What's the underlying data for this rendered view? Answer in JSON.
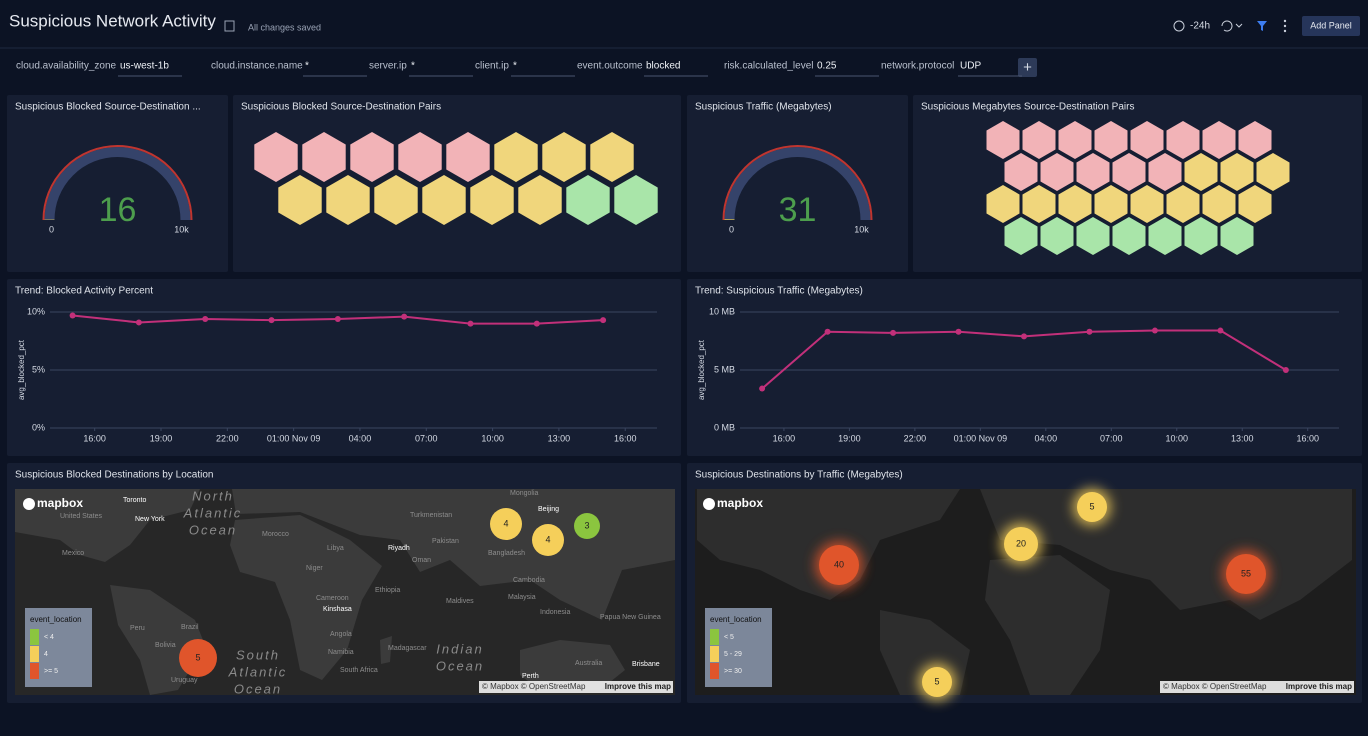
{
  "header": {
    "title": "Suspicious Network Activity",
    "status": "All changes saved",
    "time_range": "-24h",
    "add_panel": "Add Panel"
  },
  "filters": [
    {
      "label": "cloud.availability_zone",
      "value": "us-west-1b"
    },
    {
      "label": "cloud.instance.name",
      "value": "*"
    },
    {
      "label": "server.ip",
      "value": "*"
    },
    {
      "label": "client.ip",
      "value": "*"
    },
    {
      "label": "event.outcome",
      "value": "blocked"
    },
    {
      "label": "risk.calculated_level",
      "value": "0.25"
    },
    {
      "label": "network.protocol",
      "value": "UDP"
    }
  ],
  "chart_data": [
    {
      "type": "gauge",
      "title": "Suspicious Blocked Source-Destination ...",
      "value": 16,
      "min": 0,
      "max": {
        "value": 10000,
        "label": "10k"
      },
      "color": "#4d9e4d"
    },
    {
      "type": "honeycomb",
      "title": "Suspicious Blocked Source-Destination Pairs",
      "cells": [
        "#f2b3b7",
        "#f2b3b7",
        "#f2b3b7",
        "#f2b3b7",
        "#f2b3b7",
        "#f0d67c",
        "#f0d67c",
        "#f0d67c",
        "#f0d67c",
        "#f0d67c",
        "#f0d67c",
        "#f0d67c",
        "#f0d67c",
        "#f0d67c",
        "#a9e5a9",
        "#a9e5a9"
      ]
    },
    {
      "type": "gauge",
      "title": "Suspicious Traffic (Megabytes)",
      "value": 31,
      "min": 0,
      "max": {
        "value": 10000,
        "label": "10k"
      },
      "color": "#4d9e4d"
    },
    {
      "type": "honeycomb",
      "title": "Suspicious Megabytes Source-Destination Pairs",
      "cells": [
        "#f2b3b7",
        "#f2b3b7",
        "#f2b3b7",
        "#f2b3b7",
        "#f2b3b7",
        "#f2b3b7",
        "#f2b3b7",
        "#f2b3b7",
        "#f2b3b7",
        "#f2b3b7",
        "#f2b3b7",
        "#f2b3b7",
        "#f2b3b7",
        "#f0d67c",
        "#f0d67c",
        "#f0d67c",
        "#f0d67c",
        "#f0d67c",
        "#f0d67c",
        "#f0d67c",
        "#f0d67c",
        "#f0d67c",
        "#f0d67c",
        "#f0d67c",
        "#a9e5a9",
        "#a9e5a9",
        "#a9e5a9",
        "#a9e5a9",
        "#a9e5a9",
        "#a9e5a9",
        "#a9e5a9"
      ]
    },
    {
      "type": "line",
      "title": "Trend: Blocked Activity Percent",
      "y_label": "avg_blocked_pct",
      "color": "#c2307a",
      "x": [
        15,
        18,
        21,
        24,
        27,
        30,
        33,
        36,
        39
      ],
      "values": [
        9.7,
        9.1,
        9.4,
        9.3,
        9.4,
        9.6,
        9.0,
        9.0,
        9.3
      ],
      "xlim": [
        13.3,
        41.8
      ],
      "xticks": [
        {
          "value": 16,
          "label": "16:00"
        },
        {
          "value": 19,
          "label": "19:00"
        },
        {
          "value": 22,
          "label": "22:00"
        },
        {
          "value": 25,
          "label": "01:00 Nov 09"
        },
        {
          "value": 28,
          "label": "04:00"
        },
        {
          "value": 31,
          "label": "07:00"
        },
        {
          "value": 34,
          "label": "10:00"
        },
        {
          "value": 37,
          "label": "13:00"
        },
        {
          "value": 40,
          "label": "16:00"
        }
      ],
      "ylim": [
        0,
        10
      ],
      "yticks": [
        {
          "value": 0,
          "label": "0%"
        },
        {
          "value": 5,
          "label": "5%"
        },
        {
          "value": 10,
          "label": "10%"
        }
      ],
      "grid": true
    },
    {
      "type": "line",
      "title": "Trend: Suspicious Traffic (Megabytes)",
      "y_label": "avg_blocked_pct",
      "color": "#c2307a",
      "x": [
        15,
        18,
        21,
        24,
        27,
        30,
        33,
        36,
        39
      ],
      "values": [
        3.4,
        8.3,
        8.2,
        8.3,
        7.9,
        8.3,
        8.4,
        8.4,
        5.0
      ],
      "xlim": [
        13.3,
        41.8
      ],
      "xticks": [
        {
          "value": 16,
          "label": "16:00"
        },
        {
          "value": 19,
          "label": "19:00"
        },
        {
          "value": 22,
          "label": "22:00"
        },
        {
          "value": 25,
          "label": "01:00 Nov 09"
        },
        {
          "value": 28,
          "label": "04:00"
        },
        {
          "value": 31,
          "label": "07:00"
        },
        {
          "value": 34,
          "label": "10:00"
        },
        {
          "value": 37,
          "label": "13:00"
        },
        {
          "value": 40,
          "label": "16:00"
        }
      ],
      "ylim": [
        0,
        10
      ],
      "yticks": [
        {
          "value": 0,
          "label": "0 MB"
        },
        {
          "value": 5,
          "label": "5 MB"
        },
        {
          "value": 10,
          "label": "10 MB"
        }
      ],
      "grid": true
    },
    {
      "type": "map",
      "title": "Suspicious Blocked Destinations by Location",
      "logo": "mapbox",
      "places": [
        "Toronto",
        "New York",
        "United States",
        "Mexico",
        "North",
        "Atlantic",
        "Ocean",
        "Morocco",
        "Libya",
        "Niger",
        "Turkmenistan",
        "Mongolia",
        "Beijing",
        "Riyadh",
        "Oman",
        "Pakistan",
        "Bangladesh",
        "Cambodia",
        "Malaysia",
        "Indonesia",
        "Papua New Guinea",
        "Maldives",
        "Ethiopia",
        "Cameroon",
        "Kinshasa",
        "Angola",
        "Namibia",
        "South Africa",
        "Madagascar",
        "Brazil",
        "Peru",
        "Bolivia",
        "Uruguay",
        "South",
        "Atlantic",
        "Ocean",
        "Indian",
        "Ocean",
        "Australia",
        "Perth",
        "Brisbane"
      ],
      "bubbles": [
        {
          "value": 4,
          "color": "#f5cf5a"
        },
        {
          "value": 4,
          "color": "#f5cf5a"
        },
        {
          "value": 3,
          "color": "#8bc53f"
        },
        {
          "value": 5,
          "color": "#e0552b"
        }
      ],
      "legend": {
        "title": "event_location",
        "items": [
          {
            "label": "< 4",
            "color": "#8bc53f"
          },
          {
            "label": "4",
            "color": "#f5cf5a"
          },
          {
            "label": ">= 5",
            "color": "#e0552b"
          }
        ]
      },
      "attribution": "© Mapbox © OpenStreetMap",
      "improve": "Improve this map"
    },
    {
      "type": "map",
      "title": "Suspicious Destinations by Traffic (Megabytes)",
      "logo": "mapbox",
      "places": [],
      "bubbles": [
        {
          "value": 5,
          "color": "#f5cf5a"
        },
        {
          "value": 20,
          "color": "#f5cf5a"
        },
        {
          "value": 40,
          "color": "#e0552b"
        },
        {
          "value": 55,
          "color": "#e0552b"
        },
        {
          "value": 5,
          "color": "#f5cf5a"
        }
      ],
      "legend": {
        "title": "event_location",
        "items": [
          {
            "label": "< 5",
            "color": "#8bc53f"
          },
          {
            "label": "5 - 29",
            "color": "#f5cf5a"
          },
          {
            "label": ">= 30",
            "color": "#e0552b"
          }
        ]
      },
      "attribution": "© Mapbox © OpenStreetMap",
      "improve": "Improve this map"
    }
  ]
}
